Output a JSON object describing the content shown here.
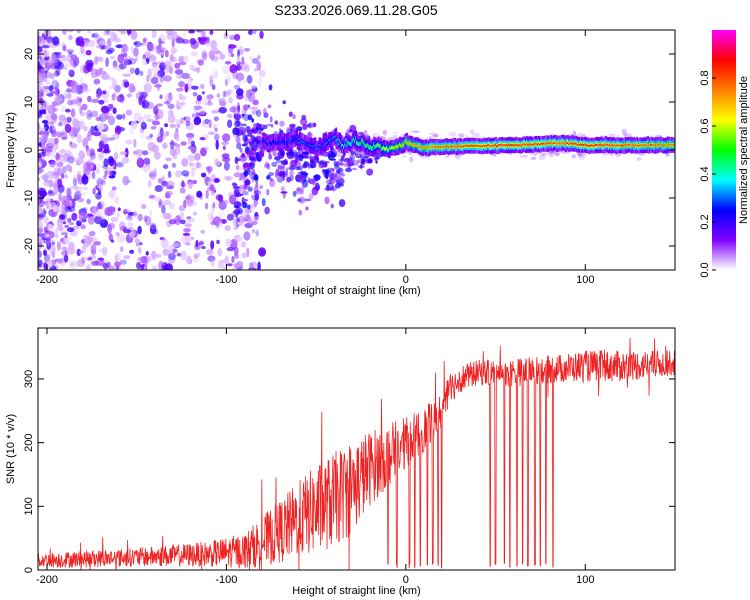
{
  "title": "S233.2026.069.11.28.G05",
  "chart_data": [
    {
      "type": "heatmap",
      "name": "spectrogram",
      "xlabel": "Height of straight line (km)",
      "ylabel": "Frequency (Hz)",
      "xlim": [
        -205,
        150
      ],
      "ylim": [
        -25,
        25
      ],
      "xticks": [
        -200,
        -100,
        0,
        100
      ],
      "yticks": [
        -20,
        -10,
        0,
        10,
        20
      ],
      "colorbar": {
        "label": "Normalized spectral amplitude",
        "range": [
          0,
          1
        ],
        "ticks": [
          "0.0",
          "0.2",
          "0.4",
          "0.6",
          "0.8"
        ],
        "colors": [
          "#ffffff",
          "#8000ff",
          "#0000ff",
          "#00ffff",
          "#00ff00",
          "#ffff00",
          "#ff8000",
          "#ff0000",
          "#ff00ff"
        ]
      },
      "signal_trace": {
        "x": [
          -75,
          -60,
          -50,
          -45,
          -40,
          -35,
          -30,
          -25,
          -20,
          -15,
          -10,
          -5,
          0,
          10,
          30,
          60,
          85,
          100,
          120,
          150
        ],
        "freq_hz": [
          1.5,
          2.0,
          0.5,
          1.8,
          2.5,
          1.0,
          2.0,
          1.5,
          0.5,
          1.0,
          0.0,
          0.8,
          1.5,
          0.5,
          0.8,
          1.0,
          1.5,
          1.0,
          1.0,
          1.0
        ],
        "amplitude": [
          0.25,
          0.3,
          0.3,
          0.3,
          0.35,
          0.4,
          0.45,
          0.5,
          0.5,
          0.55,
          0.6,
          0.65,
          0.7,
          0.75,
          0.8,
          0.85,
          0.8,
          0.85,
          0.8,
          0.75
        ]
      }
    },
    {
      "type": "line",
      "name": "snr",
      "xlabel": "Height of straight line (km)",
      "ylabel": "SNR (10 * v/v)",
      "xlim": [
        -205,
        150
      ],
      "ylim": [
        0,
        380
      ],
      "xticks": [
        -200,
        -100,
        0,
        100
      ],
      "yticks": [
        0,
        100,
        200,
        300
      ],
      "color": "#ee2222",
      "envelope": {
        "x": [
          -205,
          -150,
          -110,
          -90,
          -80,
          -70,
          -60,
          -50,
          -40,
          -30,
          -20,
          -10,
          0,
          10,
          20,
          25,
          30,
          40,
          60,
          80,
          100,
          120,
          150
        ],
        "mean": [
          15,
          20,
          25,
          30,
          45,
          60,
          80,
          95,
          110,
          130,
          160,
          180,
          200,
          220,
          250,
          285,
          300,
          310,
          310,
          315,
          320,
          320,
          325
        ],
        "spread": [
          12,
          15,
          20,
          28,
          40,
          50,
          60,
          70,
          75,
          75,
          60,
          50,
          40,
          35,
          30,
          25,
          22,
          20,
          22,
          22,
          25,
          25,
          20
        ]
      },
      "dropouts_x": [
        -10,
        -5,
        2,
        5,
        8,
        12,
        15,
        18,
        20,
        47,
        50,
        55,
        58,
        62,
        65,
        68,
        72,
        75,
        78,
        82
      ]
    }
  ]
}
